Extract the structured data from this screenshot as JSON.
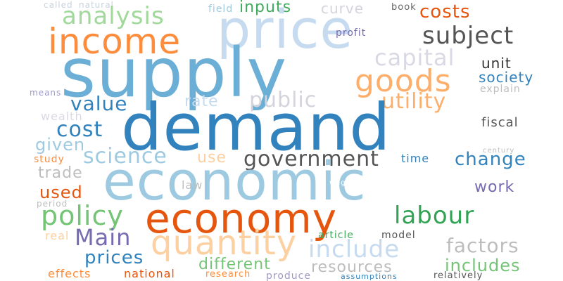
{
  "words": {
    "called": "called",
    "natural": "natural",
    "analysis": "analysis",
    "field": "field",
    "inputs": "inputs",
    "curve": "curve",
    "book": "book",
    "costs": "costs",
    "price": "price",
    "income": "income",
    "subject": "subject",
    "profit": "profit",
    "supply": "supply",
    "capital": "capital",
    "unit": "unit",
    "goods": "goods",
    "society": "society",
    "means": "means",
    "explain": "explain",
    "public": "public",
    "rate": "rate",
    "value": "value",
    "utility": "utility",
    "wealth": "wealth",
    "demand": "demand",
    "fiscal": "fiscal",
    "cost": "cost",
    "given": "given",
    "science": "science",
    "government": "government",
    "century": "century",
    "study": "study",
    "use": "use",
    "time": "time",
    "change": "change",
    "trade": "trade",
    "economic": "economic",
    "law": "law",
    "wages": "wages",
    "used": "used",
    "work": "work",
    "period": "period",
    "policy": "policy",
    "economy": "economy",
    "labour": "labour",
    "real": "real",
    "article": "article",
    "model": "model",
    "main": "Main",
    "quantity": "quantity",
    "include": "include",
    "factors": "factors",
    "prices": "prices",
    "different": "different",
    "resources": "resources",
    "includes": "includes",
    "effects": "effects",
    "national": "national",
    "research": "research",
    "produce": "produce",
    "assumptions": "assumptions",
    "relatively": "relatively"
  }
}
